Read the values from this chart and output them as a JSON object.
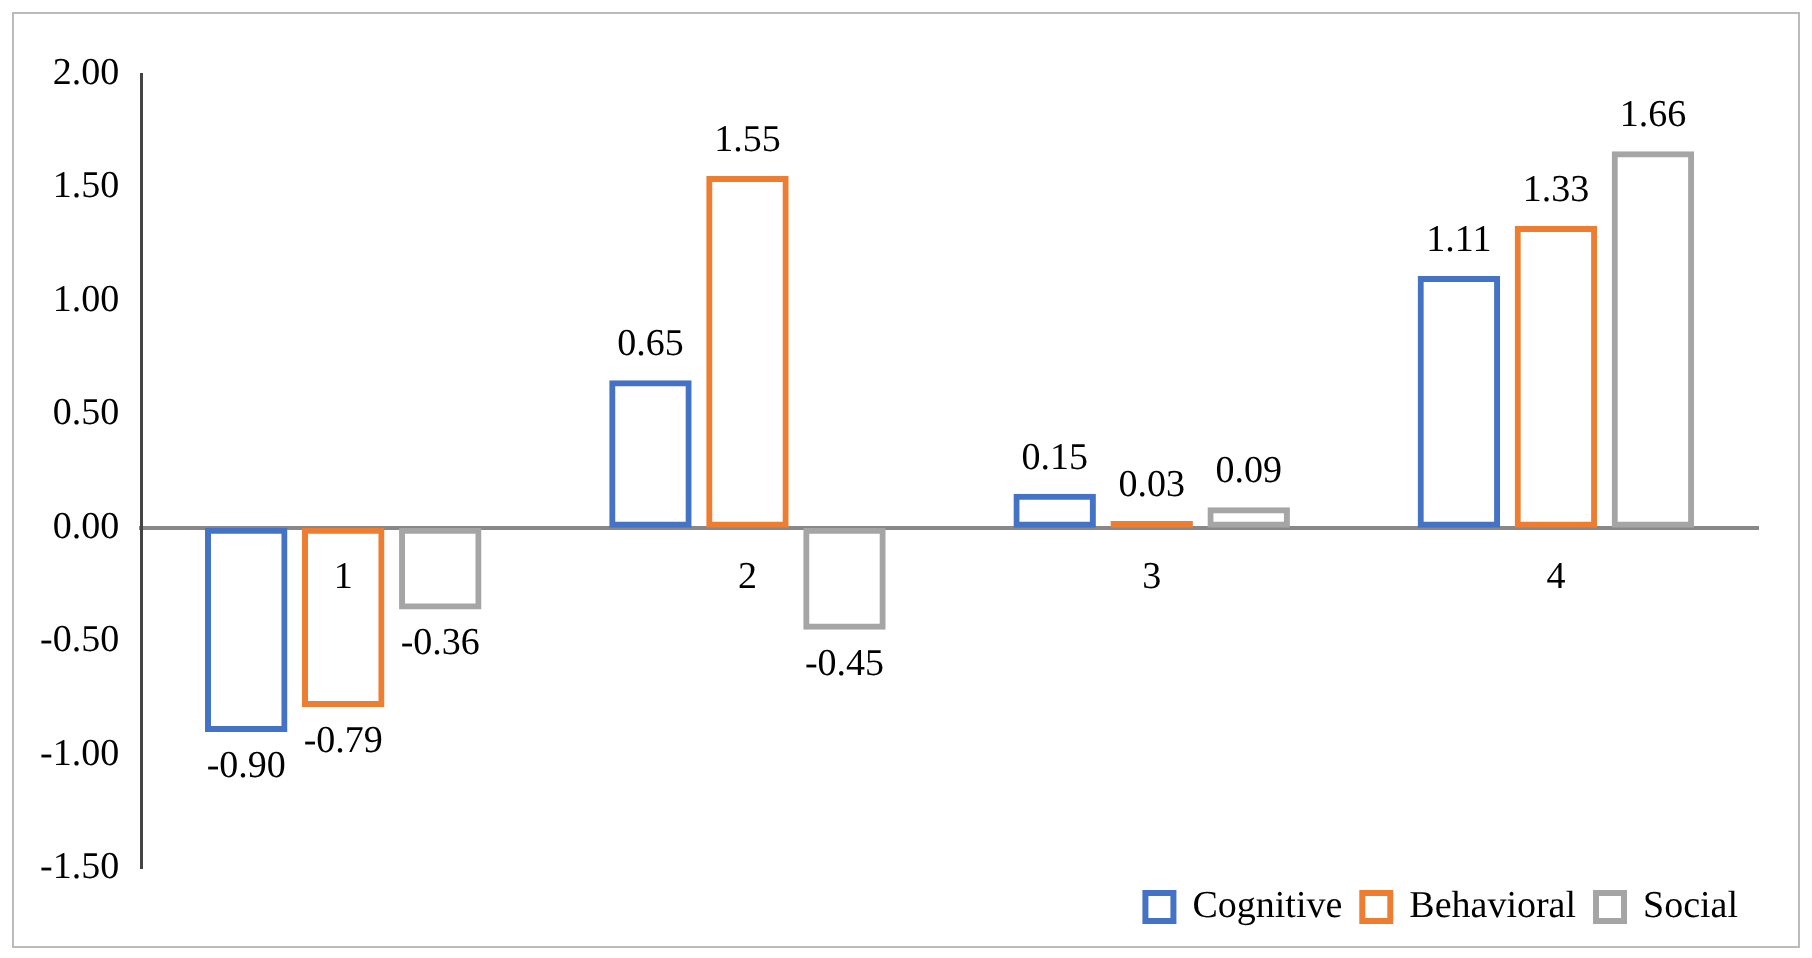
{
  "chart_data": {
    "type": "bar",
    "categories": [
      "1",
      "2",
      "3",
      "4"
    ],
    "series": [
      {
        "name": "Cognitive",
        "color": "#4472c4",
        "values": [
          -0.9,
          0.65,
          0.15,
          1.11
        ],
        "value_labels": [
          "-0.90",
          "0.65",
          "0.15",
          "1.11"
        ]
      },
      {
        "name": "Behavioral",
        "color": "#ed7d31",
        "values": [
          -0.79,
          1.55,
          0.03,
          1.33
        ],
        "value_labels": [
          "-0.79",
          "1.55",
          "0.03",
          "1.33"
        ]
      },
      {
        "name": "Social",
        "color": "#a5a5a5",
        "values": [
          -0.36,
          -0.45,
          0.09,
          1.66
        ],
        "value_labels": [
          "-0.36",
          "-0.45",
          "0.09",
          "1.66"
        ]
      }
    ],
    "ylim": [
      -1.5,
      2
    ],
    "yticks": [
      {
        "value": -1.5,
        "label": "-1.50"
      },
      {
        "value": -1,
        "label": "-1.00"
      },
      {
        "value": -0.5,
        "label": "-0.50"
      },
      {
        "value": 0,
        "label": "0.00"
      },
      {
        "value": 0.5,
        "label": "0.50"
      },
      {
        "value": 1,
        "label": "1.00"
      },
      {
        "value": 1.5,
        "label": "1.50"
      },
      {
        "value": 2,
        "label": "2.00"
      }
    ],
    "grid": false,
    "legend": "bottom"
  }
}
